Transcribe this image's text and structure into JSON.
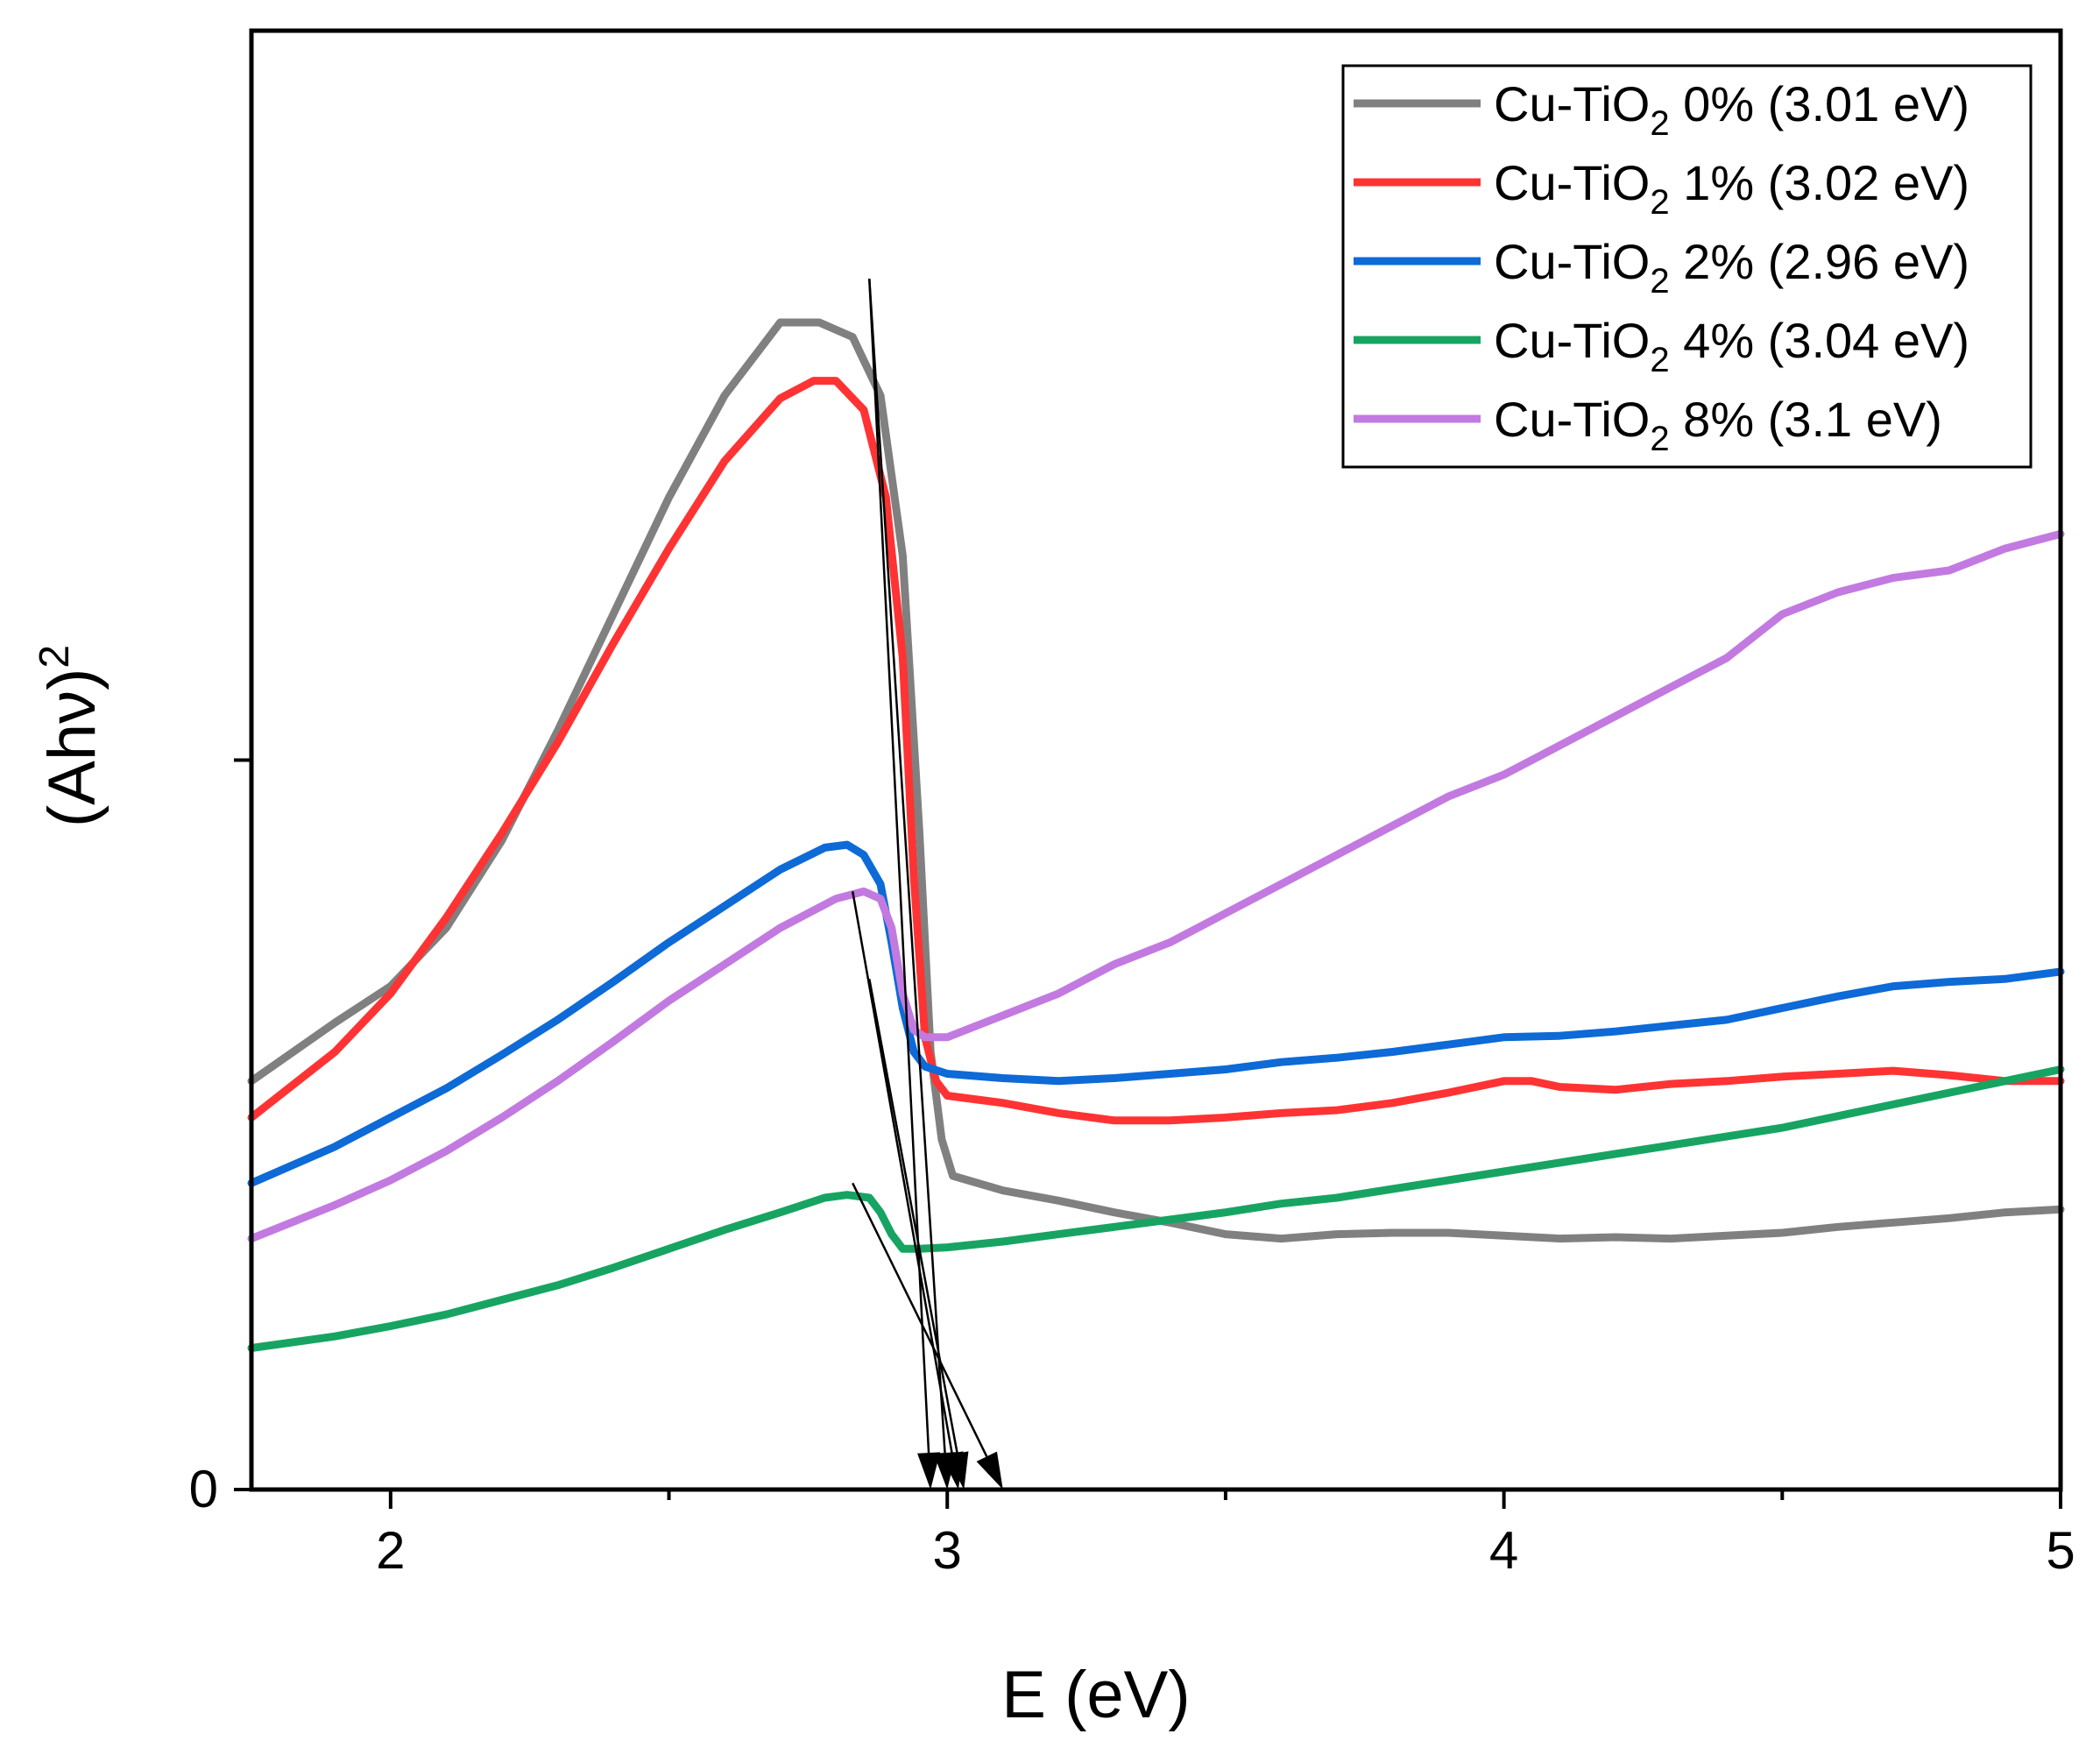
{
  "chart_data": {
    "type": "line",
    "title": "",
    "xlabel": "E (eV)",
    "ylabel_base": "(Ahν)",
    "ylabel_sup": "2",
    "xlim": [
      1.75,
      5.0
    ],
    "ylim": [
      0,
      1.0
    ],
    "x_ticks": [
      {
        "value": 2,
        "label": "2"
      },
      {
        "value": 3,
        "label": "3"
      },
      {
        "value": 4,
        "label": "4"
      },
      {
        "value": 5,
        "label": "5"
      }
    ],
    "y_ticks": [
      {
        "value": 0,
        "label": "0"
      },
      {
        "value": 0.5,
        "label": ""
      }
    ],
    "legend": {
      "position": "top-right"
    },
    "series": [
      {
        "name": "Cu-TiO2 0% (3.01 eV)",
        "label_main": "Cu-TiO",
        "label_sub": "2",
        "label_rest": " 0% (3.01 eV)",
        "color": "#808080",
        "band_gap_ev": 3.01,
        "points": [
          [
            1.75,
            0.28
          ],
          [
            1.9,
            0.32
          ],
          [
            2.0,
            0.345
          ],
          [
            2.1,
            0.385
          ],
          [
            2.2,
            0.445
          ],
          [
            2.3,
            0.52
          ],
          [
            2.4,
            0.6
          ],
          [
            2.5,
            0.68
          ],
          [
            2.6,
            0.75
          ],
          [
            2.7,
            0.8
          ],
          [
            2.77,
            0.8
          ],
          [
            2.83,
            0.79
          ],
          [
            2.88,
            0.75
          ],
          [
            2.92,
            0.64
          ],
          [
            2.95,
            0.45
          ],
          [
            2.97,
            0.3
          ],
          [
            2.99,
            0.24
          ],
          [
            3.01,
            0.215
          ],
          [
            3.1,
            0.205
          ],
          [
            3.2,
            0.198
          ],
          [
            3.3,
            0.19
          ],
          [
            3.4,
            0.183
          ],
          [
            3.5,
            0.175
          ],
          [
            3.6,
            0.172
          ],
          [
            3.7,
            0.175
          ],
          [
            3.8,
            0.176
          ],
          [
            3.9,
            0.176
          ],
          [
            4.0,
            0.174
          ],
          [
            4.1,
            0.172
          ],
          [
            4.2,
            0.173
          ],
          [
            4.3,
            0.172
          ],
          [
            4.4,
            0.174
          ],
          [
            4.5,
            0.176
          ],
          [
            4.6,
            0.18
          ],
          [
            4.7,
            0.183
          ],
          [
            4.8,
            0.186
          ],
          [
            4.9,
            0.19
          ],
          [
            5.0,
            0.192
          ]
        ]
      },
      {
        "name": "Cu-TiO2 1% (3.02 eV)",
        "label_main": "Cu-TiO",
        "label_sub": "2",
        "label_rest": " 1% (3.02 eV)",
        "color": "#ff3333",
        "band_gap_ev": 3.02,
        "points": [
          [
            1.75,
            0.255
          ],
          [
            1.9,
            0.3
          ],
          [
            2.0,
            0.34
          ],
          [
            2.1,
            0.392
          ],
          [
            2.2,
            0.45
          ],
          [
            2.3,
            0.512
          ],
          [
            2.4,
            0.58
          ],
          [
            2.5,
            0.645
          ],
          [
            2.6,
            0.705
          ],
          [
            2.7,
            0.748
          ],
          [
            2.76,
            0.76
          ],
          [
            2.8,
            0.76
          ],
          [
            2.85,
            0.74
          ],
          [
            2.89,
            0.68
          ],
          [
            2.92,
            0.57
          ],
          [
            2.94,
            0.42
          ],
          [
            2.96,
            0.31
          ],
          [
            2.98,
            0.28
          ],
          [
            3.0,
            0.27
          ],
          [
            3.1,
            0.265
          ],
          [
            3.2,
            0.258
          ],
          [
            3.3,
            0.253
          ],
          [
            3.4,
            0.253
          ],
          [
            3.5,
            0.255
          ],
          [
            3.6,
            0.258
          ],
          [
            3.7,
            0.26
          ],
          [
            3.8,
            0.265
          ],
          [
            3.9,
            0.272
          ],
          [
            4.0,
            0.28
          ],
          [
            4.05,
            0.28
          ],
          [
            4.1,
            0.276
          ],
          [
            4.2,
            0.274
          ],
          [
            4.3,
            0.278
          ],
          [
            4.4,
            0.28
          ],
          [
            4.5,
            0.283
          ],
          [
            4.6,
            0.285
          ],
          [
            4.7,
            0.287
          ],
          [
            4.8,
            0.284
          ],
          [
            4.9,
            0.28
          ],
          [
            5.0,
            0.28
          ]
        ]
      },
      {
        "name": "Cu-TiO2 2% (2.96 eV)",
        "label_main": "Cu-TiO",
        "label_sub": "2",
        "label_rest": " 2% (2.96 eV)",
        "color": "#0d6ad6",
        "band_gap_ev": 2.96,
        "points": [
          [
            1.75,
            0.21
          ],
          [
            1.9,
            0.235
          ],
          [
            2.0,
            0.255
          ],
          [
            2.1,
            0.275
          ],
          [
            2.2,
            0.298
          ],
          [
            2.3,
            0.322
          ],
          [
            2.4,
            0.348
          ],
          [
            2.5,
            0.375
          ],
          [
            2.6,
            0.4
          ],
          [
            2.7,
            0.425
          ],
          [
            2.78,
            0.44
          ],
          [
            2.82,
            0.442
          ],
          [
            2.85,
            0.435
          ],
          [
            2.88,
            0.415
          ],
          [
            2.9,
            0.375
          ],
          [
            2.92,
            0.33
          ],
          [
            2.94,
            0.3
          ],
          [
            2.96,
            0.29
          ],
          [
            3.0,
            0.285
          ],
          [
            3.1,
            0.282
          ],
          [
            3.2,
            0.28
          ],
          [
            3.3,
            0.282
          ],
          [
            3.4,
            0.285
          ],
          [
            3.5,
            0.288
          ],
          [
            3.6,
            0.293
          ],
          [
            3.7,
            0.296
          ],
          [
            3.8,
            0.3
          ],
          [
            3.9,
            0.305
          ],
          [
            4.0,
            0.31
          ],
          [
            4.1,
            0.311
          ],
          [
            4.2,
            0.314
          ],
          [
            4.3,
            0.318
          ],
          [
            4.4,
            0.322
          ],
          [
            4.5,
            0.33
          ],
          [
            4.6,
            0.338
          ],
          [
            4.7,
            0.345
          ],
          [
            4.8,
            0.348
          ],
          [
            4.9,
            0.35
          ],
          [
            5.0,
            0.355
          ]
        ]
      },
      {
        "name": "Cu-TiO2 4% (3.04 eV)",
        "label_main": "Cu-TiO",
        "label_sub": "2",
        "label_rest": " 4% (3.04 eV)",
        "color": "#17a462",
        "band_gap_ev": 3.04,
        "points": [
          [
            1.75,
            0.097
          ],
          [
            1.9,
            0.105
          ],
          [
            2.0,
            0.112
          ],
          [
            2.1,
            0.12
          ],
          [
            2.2,
            0.13
          ],
          [
            2.3,
            0.14
          ],
          [
            2.4,
            0.152
          ],
          [
            2.5,
            0.165
          ],
          [
            2.6,
            0.178
          ],
          [
            2.7,
            0.19
          ],
          [
            2.78,
            0.2
          ],
          [
            2.82,
            0.202
          ],
          [
            2.86,
            0.2
          ],
          [
            2.88,
            0.19
          ],
          [
            2.9,
            0.175
          ],
          [
            2.92,
            0.165
          ],
          [
            2.95,
            0.165
          ],
          [
            3.0,
            0.166
          ],
          [
            3.1,
            0.17
          ],
          [
            3.2,
            0.175
          ],
          [
            3.3,
            0.18
          ],
          [
            3.4,
            0.185
          ],
          [
            3.5,
            0.19
          ],
          [
            3.6,
            0.196
          ],
          [
            3.7,
            0.2
          ],
          [
            3.8,
            0.206
          ],
          [
            3.9,
            0.212
          ],
          [
            4.0,
            0.218
          ],
          [
            4.1,
            0.224
          ],
          [
            4.2,
            0.23
          ],
          [
            4.3,
            0.236
          ],
          [
            4.4,
            0.242
          ],
          [
            4.5,
            0.248
          ],
          [
            4.6,
            0.256
          ],
          [
            4.7,
            0.264
          ],
          [
            4.8,
            0.272
          ],
          [
            4.9,
            0.28
          ],
          [
            5.0,
            0.288
          ]
        ]
      },
      {
        "name": "Cu-TiO2 8% (3.1 eV)",
        "label_main": "Cu-TiO",
        "label_sub": "2",
        "label_rest": " 8% (3.1 eV)",
        "color": "#c27ae0",
        "band_gap_ev": 3.1,
        "points": [
          [
            1.75,
            0.172
          ],
          [
            1.9,
            0.195
          ],
          [
            2.0,
            0.212
          ],
          [
            2.1,
            0.232
          ],
          [
            2.2,
            0.255
          ],
          [
            2.3,
            0.28
          ],
          [
            2.4,
            0.307
          ],
          [
            2.5,
            0.335
          ],
          [
            2.6,
            0.36
          ],
          [
            2.7,
            0.385
          ],
          [
            2.8,
            0.405
          ],
          [
            2.85,
            0.41
          ],
          [
            2.88,
            0.405
          ],
          [
            2.9,
            0.385
          ],
          [
            2.92,
            0.34
          ],
          [
            2.94,
            0.315
          ],
          [
            2.96,
            0.31
          ],
          [
            3.0,
            0.31
          ],
          [
            3.1,
            0.325
          ],
          [
            3.2,
            0.34
          ],
          [
            3.3,
            0.36
          ],
          [
            3.4,
            0.375
          ],
          [
            3.5,
            0.395
          ],
          [
            3.6,
            0.415
          ],
          [
            3.7,
            0.435
          ],
          [
            3.8,
            0.455
          ],
          [
            3.9,
            0.475
          ],
          [
            4.0,
            0.49
          ],
          [
            4.1,
            0.51
          ],
          [
            4.2,
            0.53
          ],
          [
            4.3,
            0.55
          ],
          [
            4.4,
            0.57
          ],
          [
            4.5,
            0.6
          ],
          [
            4.6,
            0.615
          ],
          [
            4.7,
            0.625
          ],
          [
            4.8,
            0.63
          ],
          [
            4.9,
            0.645
          ],
          [
            5.0,
            0.655
          ]
        ]
      }
    ],
    "tangent_arrows": [
      {
        "from": [
          2.86,
          0.83
        ],
        "to": [
          2.97,
          0.0
        ]
      },
      {
        "from": [
          2.86,
          0.83
        ],
        "to": [
          3.0,
          0.0
        ]
      },
      {
        "from": [
          2.86,
          0.35
        ],
        "to": [
          3.03,
          0.0
        ]
      },
      {
        "from": [
          2.83,
          0.41
        ],
        "to": [
          3.02,
          0.0
        ]
      },
      {
        "from": [
          2.83,
          0.21
        ],
        "to": [
          3.1,
          0.0
        ]
      }
    ]
  }
}
